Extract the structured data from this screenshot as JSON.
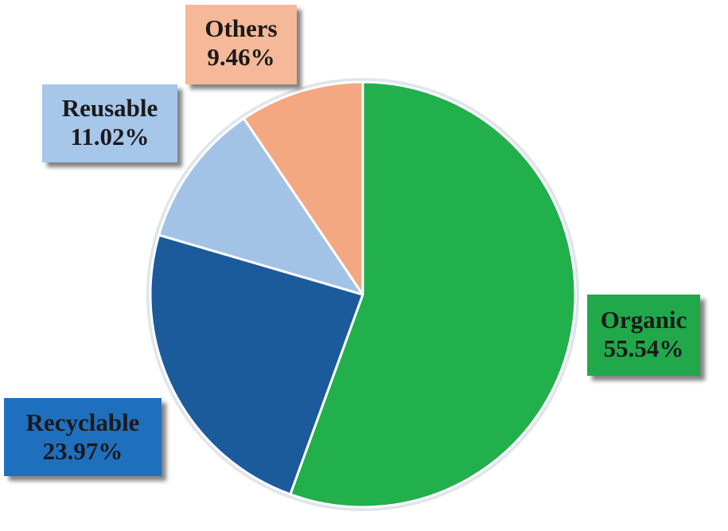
{
  "chart_data": {
    "type": "pie",
    "slices": [
      {
        "label": "Organic",
        "value": 55.54,
        "value_text": "55.54%",
        "color": "#21b04b",
        "label_bg": "#21a84b",
        "label_fg": "#1a1a1a"
      },
      {
        "label": "Recyclable",
        "value": 23.97,
        "value_text": "23.97%",
        "color": "#1c5b9b",
        "label_bg": "#1f6fbf",
        "label_fg": "#1a1a1a"
      },
      {
        "label": "Reusable",
        "value": 11.02,
        "value_text": "11.02%",
        "color": "#a3c3e6",
        "label_bg": "#a6c6ea",
        "label_fg": "#1a1a1a"
      },
      {
        "label": "Others",
        "value": 9.46,
        "value_text": "9.46%",
        "color": "#f3a881",
        "label_bg": "#f5b898",
        "label_fg": "#1a1a1a"
      }
    ],
    "start_angle_deg": 0,
    "direction": "clockwise"
  }
}
